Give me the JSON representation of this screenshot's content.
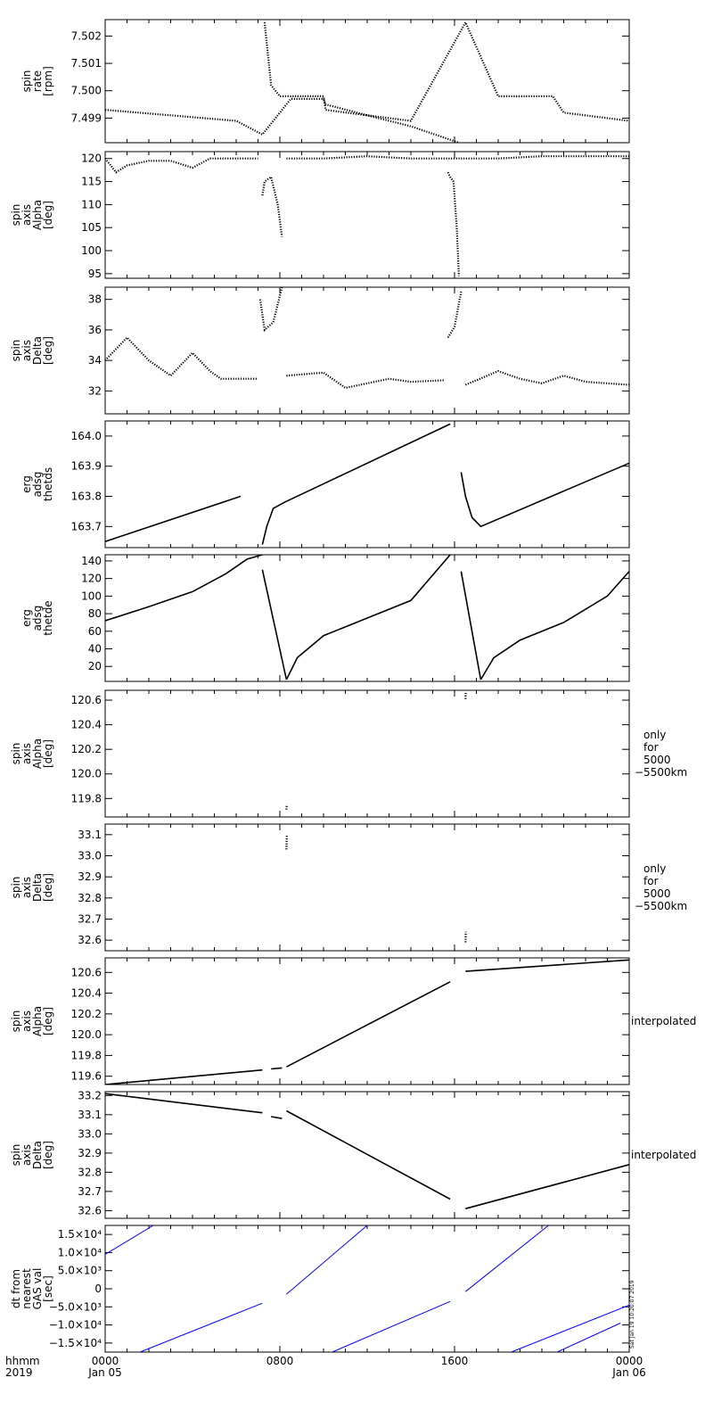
{
  "footer": {
    "time_label": "hhmm",
    "year_label": "2019",
    "x_ticks": [
      {
        "time": "0000",
        "date": "Jan 05"
      },
      {
        "time": "0800",
        "date": ""
      },
      {
        "time": "1600",
        "date": ""
      },
      {
        "time": "0000",
        "date": "Jan 06"
      }
    ],
    "stamp": "Sat Jan 19 10:20:07 2019"
  },
  "colors": {
    "axes": "#000000",
    "trace": "#000000",
    "dt_trace": "#0000ff"
  },
  "chart_data": [
    {
      "type": "scatter",
      "ylabel": [
        "spin",
        "rate",
        "[rpm]"
      ],
      "ylim": [
        7.4981,
        7.5026
      ],
      "yticks": [
        "7.499",
        "7.500",
        "7.501",
        "7.502"
      ],
      "note": [],
      "x_unit": "hours since 2019-01-05 0000",
      "series": [
        {
          "x": [
            0,
            3,
            6,
            7.2,
            8.5,
            10,
            10.1,
            12,
            14,
            16.2
          ],
          "y": [
            7.4993,
            7.4991,
            7.4989,
            7.4984,
            7.4997,
            7.4997,
            7.4995,
            7.4991,
            7.4987,
            7.4981
          ]
        },
        {
          "x": [
            7.3,
            7.6,
            8.0,
            9.0,
            10,
            10.1,
            12,
            14,
            16.5,
            18,
            19,
            20.5,
            21,
            24
          ],
          "y": [
            7.5025,
            7.5002,
            7.4998,
            7.4998,
            7.4998,
            7.4993,
            7.4991,
            7.4989,
            7.5025,
            7.4998,
            7.4998,
            7.4998,
            7.4992,
            7.4989
          ]
        }
      ]
    },
    {
      "type": "scatter",
      "ylabel": [
        "spin",
        "axis",
        "Alpha",
        "[deg]"
      ],
      "ylim": [
        94,
        121.5
      ],
      "yticks": [
        "95",
        "100",
        "105",
        "110",
        "115",
        "120"
      ],
      "note": [],
      "series": [
        {
          "x": [
            0,
            0.5,
            1,
            2,
            3,
            4,
            4.8,
            5.5,
            7
          ],
          "y": [
            120,
            117,
            118.5,
            119.5,
            119.5,
            118,
            120,
            120,
            120
          ]
        },
        {
          "x": [
            7.2,
            7.3,
            7.6,
            7.9,
            8.1
          ],
          "y": [
            112,
            115,
            116,
            110,
            103
          ]
        },
        {
          "x": [
            8.3,
            10,
            12,
            14,
            15.8,
            16.3,
            18,
            20,
            22,
            24
          ],
          "y": [
            120,
            120,
            120.5,
            120,
            120,
            120,
            120,
            120.5,
            120.5,
            120.5
          ]
        },
        {
          "x": [
            15.7,
            15.8,
            15.95,
            16.1,
            16.2
          ],
          "y": [
            117,
            116,
            115,
            105,
            94.5
          ]
        }
      ]
    },
    {
      "type": "scatter",
      "ylabel": [
        "spin",
        "axis",
        "Delta",
        "[deg]"
      ],
      "ylim": [
        30.5,
        38.8
      ],
      "yticks": [
        "32",
        "34",
        "36",
        "38"
      ],
      "note": [],
      "series": [
        {
          "x": [
            0,
            1,
            2,
            3,
            4,
            4.8,
            5.3,
            7
          ],
          "y": [
            34,
            35.5,
            34,
            33,
            34.5,
            33.3,
            32.8,
            32.8
          ]
        },
        {
          "x": [
            7.1,
            7.3,
            7.7,
            8.1
          ],
          "y": [
            38,
            36,
            36.5,
            38.8
          ]
        },
        {
          "x": [
            8.3,
            10,
            11,
            12,
            13,
            14,
            15.5
          ],
          "y": [
            33,
            33.2,
            32.2,
            32.5,
            32.8,
            32.6,
            32.7
          ]
        },
        {
          "x": [
            15.7,
            16.0,
            16.3
          ],
          "y": [
            35.5,
            36.2,
            38.5
          ]
        },
        {
          "x": [
            16.5,
            18,
            19,
            20,
            21,
            22,
            24
          ],
          "y": [
            32.4,
            33.3,
            32.8,
            32.5,
            33,
            32.6,
            32.4
          ]
        }
      ]
    },
    {
      "type": "line",
      "ylabel": [
        "erg",
        "adsg",
        "thetds"
      ],
      "ylim": [
        163.63,
        164.05
      ],
      "yticks": [
        "163.7",
        "163.8",
        "163.9",
        "164.0"
      ],
      "note": [],
      "series": [
        {
          "x": [
            0,
            6.2
          ],
          "y": [
            163.65,
            163.8
          ]
        },
        {
          "x": [
            7.2,
            7.4,
            7.7,
            8.2,
            15.8
          ],
          "y": [
            163.64,
            163.7,
            163.76,
            163.78,
            164.04
          ]
        },
        {
          "x": [
            16.3,
            16.5,
            16.8,
            17.2,
            24
          ],
          "y": [
            163.88,
            163.8,
            163.73,
            163.7,
            163.91
          ]
        }
      ]
    },
    {
      "type": "line",
      "ylabel": [
        "erg",
        "adsg",
        "thetde"
      ],
      "ylim": [
        3,
        147
      ],
      "yticks": [
        "20",
        "40",
        "60",
        "80",
        "100",
        "120",
        "140"
      ],
      "note": [],
      "series": [
        {
          "x": [
            0,
            2,
            4,
            5.5,
            6.5,
            7.2
          ],
          "y": [
            72,
            88,
            105,
            125,
            142,
            147
          ]
        },
        {
          "x": [
            7.2,
            8.3
          ],
          "y": [
            130,
            5
          ]
        },
        {
          "x": [
            8.3,
            8.8,
            10,
            12,
            14,
            15.8
          ],
          "y": [
            5,
            30,
            55,
            75,
            95,
            147
          ]
        },
        {
          "x": [
            16.3,
            17.2
          ],
          "y": [
            128,
            5
          ]
        },
        {
          "x": [
            17.2,
            17.8,
            19,
            21,
            23,
            24
          ],
          "y": [
            5,
            30,
            50,
            70,
            100,
            128
          ]
        }
      ]
    },
    {
      "type": "scatter",
      "ylabel": [
        "spin",
        "axis",
        "Alpha",
        "[deg]"
      ],
      "ylim": [
        119.65,
        120.68
      ],
      "yticks": [
        "119.8",
        "120.0",
        "120.2",
        "120.4",
        "120.6"
      ],
      "note": [
        "only",
        "for",
        "5000",
        "−5500km"
      ],
      "series": [
        {
          "x": [
            8.3,
            8.32
          ],
          "y": [
            119.71,
            119.75
          ]
        },
        {
          "x": [
            16.5,
            16.52
          ],
          "y": [
            120.61,
            120.67
          ]
        }
      ]
    },
    {
      "type": "scatter",
      "ylabel": [
        "spin",
        "axis",
        "Delta",
        "[deg]"
      ],
      "ylim": [
        32.55,
        33.15
      ],
      "yticks": [
        "32.6",
        "32.7",
        "32.8",
        "32.9",
        "33.0",
        "33.1"
      ],
      "note": [
        "only",
        "for",
        "5000",
        "−5500km"
      ],
      "series": [
        {
          "x": [
            8.3,
            8.32
          ],
          "y": [
            33.03,
            33.1
          ]
        },
        {
          "x": [
            16.5,
            16.52
          ],
          "y": [
            32.59,
            32.64
          ]
        }
      ]
    },
    {
      "type": "line",
      "ylabel": [
        "spin",
        "axis",
        "Alpha",
        "[deg]"
      ],
      "ylim": [
        119.52,
        120.74
      ],
      "yticks": [
        "119.6",
        "119.8",
        "120.0",
        "120.2",
        "120.4",
        "120.6"
      ],
      "note": [
        "interpolated"
      ],
      "series": [
        {
          "x": [
            0,
            7.2
          ],
          "y": [
            119.52,
            119.66
          ]
        },
        {
          "x": [
            7.6,
            8.1
          ],
          "y": [
            119.67,
            119.68
          ]
        },
        {
          "x": [
            8.3,
            15.8
          ],
          "y": [
            119.69,
            120.51
          ]
        },
        {
          "x": [
            16.5,
            24
          ],
          "y": [
            120.61,
            120.72
          ]
        }
      ]
    },
    {
      "type": "line",
      "ylabel": [
        "spin",
        "axis",
        "Delta",
        "[deg]"
      ],
      "ylim": [
        32.56,
        33.22
      ],
      "yticks": [
        "32.6",
        "32.7",
        "32.8",
        "32.9",
        "33.0",
        "33.1",
        "33.2"
      ],
      "note": [
        "interpolated"
      ],
      "series": [
        {
          "x": [
            0,
            7.2
          ],
          "y": [
            33.21,
            33.11
          ]
        },
        {
          "x": [
            7.6,
            8.1
          ],
          "y": [
            33.09,
            33.08
          ]
        },
        {
          "x": [
            8.3,
            15.8
          ],
          "y": [
            33.12,
            32.66
          ]
        },
        {
          "x": [
            16.5,
            24
          ],
          "y": [
            32.61,
            32.84
          ]
        }
      ]
    },
    {
      "type": "line",
      "ylabel": [
        "dt from",
        "nearest",
        "GAS val",
        "[sec]"
      ],
      "ylim": [
        -17500,
        17500
      ],
      "yticks": [
        "−1.5×10⁴",
        "−1.0×10⁴",
        "−5.0×10³",
        "0",
        "5.0×10³",
        "1.0×10⁴",
        "1.5×10⁴"
      ],
      "note": [],
      "series": [
        {
          "x": [
            0,
            2.2
          ],
          "y": [
            9500,
            17500
          ]
        },
        {
          "x": [
            1.6,
            7.2
          ],
          "y": [
            -17500,
            -4000
          ]
        },
        {
          "x": [
            8.3,
            12
          ],
          "y": [
            -1500,
            17500
          ]
        },
        {
          "x": [
            10.4,
            15.8
          ],
          "y": [
            -17500,
            -3500
          ]
        },
        {
          "x": [
            16.5,
            20.3
          ],
          "y": [
            -800,
            17500
          ]
        },
        {
          "x": [
            18.6,
            24
          ],
          "y": [
            -17500,
            -4500
          ]
        },
        {
          "x": [
            20.7,
            23.6
          ],
          "y": [
            -17500,
            -9500
          ]
        }
      ]
    }
  ]
}
